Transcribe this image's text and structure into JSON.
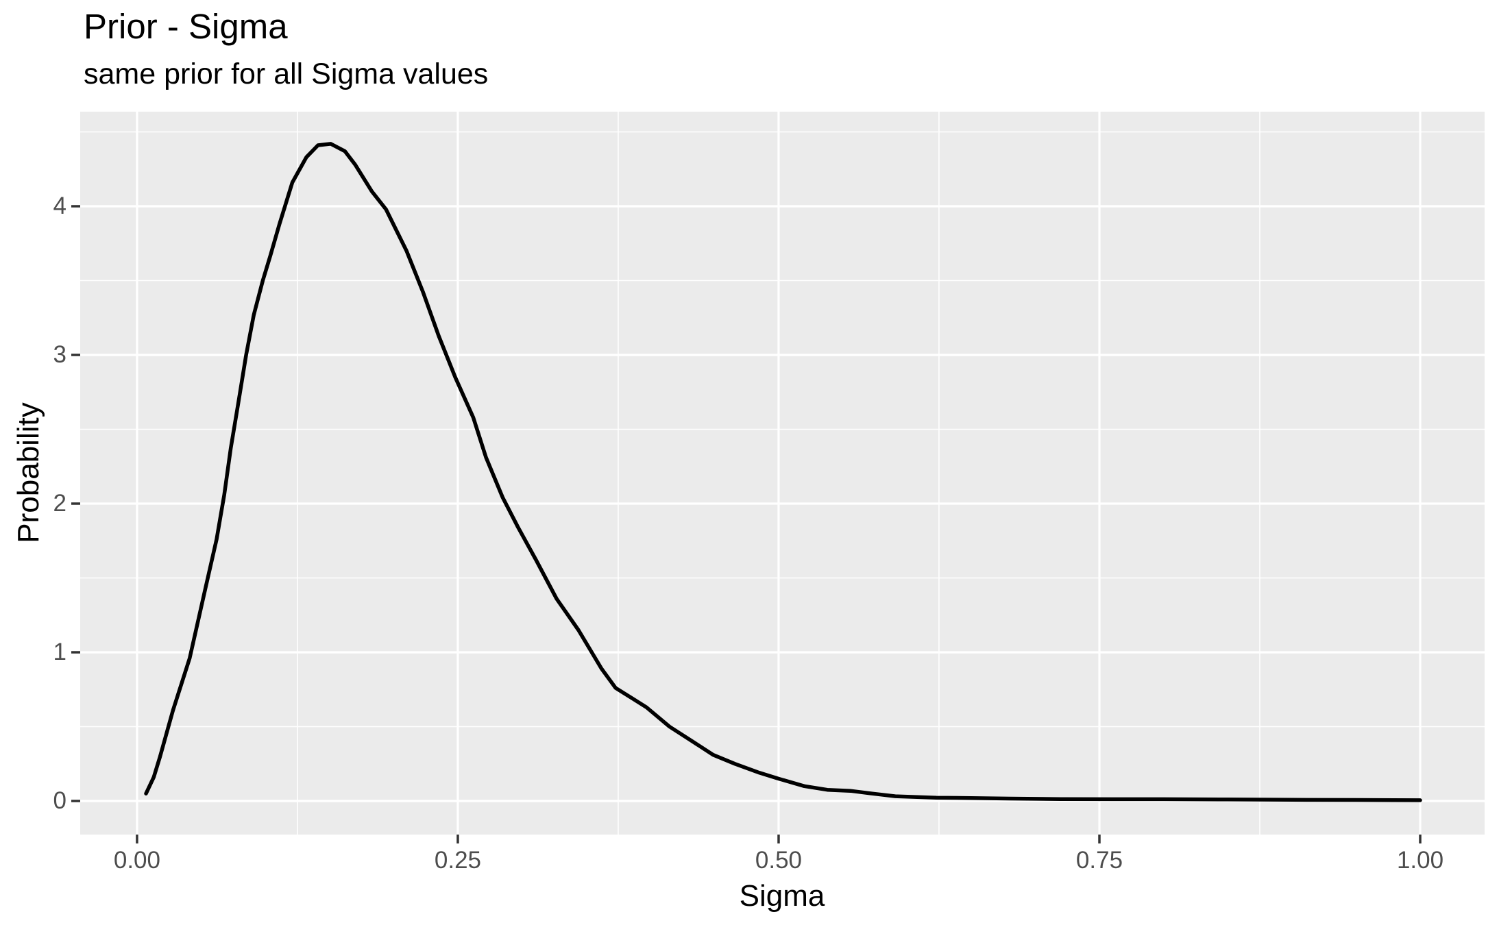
{
  "chart_data": {
    "type": "line",
    "title": "Prior - Sigma",
    "subtitle": "same prior for all Sigma values",
    "xlabel": "Sigma",
    "ylabel": "Probability",
    "x_ticks": [
      0.0,
      0.25,
      0.5,
      0.75,
      1.0
    ],
    "x_tick_labels": [
      "0.00",
      "0.25",
      "0.50",
      "0.75",
      "1.00"
    ],
    "y_ticks": [
      0,
      1,
      2,
      3,
      4
    ],
    "y_tick_labels": [
      "0",
      "1",
      "2",
      "3",
      "4"
    ],
    "x_minor_ticks": [
      0.125,
      0.375,
      0.625,
      0.875
    ],
    "y_minor_ticks": [
      0.5,
      1.5,
      2.5,
      3.5,
      4.5
    ],
    "xlim": [
      -0.0443,
      1.0502
    ],
    "ylim": [
      -0.2258,
      4.636
    ],
    "grid": "major+minor",
    "legend": "none",
    "panel_bg": "#EBEBEB",
    "grid_color": "#FFFFFF",
    "tick_color": "#333333",
    "tick_label_color": "#4D4D4D",
    "figure_bg": "#FFFFFF",
    "series": [
      {
        "name": "prior-density",
        "color": "#000000",
        "points": [
          [
            0.007,
            0.05
          ],
          [
            0.013,
            0.16
          ],
          [
            0.018,
            0.3
          ],
          [
            0.028,
            0.61
          ],
          [
            0.041,
            0.96
          ],
          [
            0.053,
            1.42
          ],
          [
            0.062,
            1.76
          ],
          [
            0.068,
            2.06
          ],
          [
            0.073,
            2.37
          ],
          [
            0.079,
            2.68
          ],
          [
            0.085,
            3.0
          ],
          [
            0.091,
            3.27
          ],
          [
            0.098,
            3.5
          ],
          [
            0.104,
            3.67
          ],
          [
            0.111,
            3.88
          ],
          [
            0.121,
            4.16
          ],
          [
            0.132,
            4.33
          ],
          [
            0.141,
            4.41
          ],
          [
            0.151,
            4.42
          ],
          [
            0.162,
            4.37
          ],
          [
            0.17,
            4.28
          ],
          [
            0.183,
            4.1
          ],
          [
            0.194,
            3.98
          ],
          [
            0.21,
            3.7
          ],
          [
            0.223,
            3.42
          ],
          [
            0.235,
            3.13
          ],
          [
            0.248,
            2.85
          ],
          [
            0.262,
            2.58
          ],
          [
            0.272,
            2.31
          ],
          [
            0.285,
            2.04
          ],
          [
            0.297,
            1.84
          ],
          [
            0.311,
            1.62
          ],
          [
            0.327,
            1.36
          ],
          [
            0.344,
            1.15
          ],
          [
            0.362,
            0.89
          ],
          [
            0.373,
            0.76
          ],
          [
            0.386,
            0.69
          ],
          [
            0.397,
            0.63
          ],
          [
            0.415,
            0.5
          ],
          [
            0.433,
            0.4
          ],
          [
            0.449,
            0.31
          ],
          [
            0.466,
            0.25
          ],
          [
            0.485,
            0.19
          ],
          [
            0.5,
            0.15
          ],
          [
            0.52,
            0.1
          ],
          [
            0.538,
            0.075
          ],
          [
            0.556,
            0.068
          ],
          [
            0.573,
            0.05
          ],
          [
            0.591,
            0.032
          ],
          [
            0.623,
            0.022
          ],
          [
            0.65,
            0.02
          ],
          [
            0.68,
            0.016
          ],
          [
            0.72,
            0.013
          ],
          [
            0.76,
            0.012
          ],
          [
            0.8,
            0.012
          ],
          [
            0.85,
            0.01
          ],
          [
            0.9,
            0.008
          ],
          [
            0.95,
            0.007
          ],
          [
            1.0,
            0.005
          ]
        ]
      }
    ]
  }
}
